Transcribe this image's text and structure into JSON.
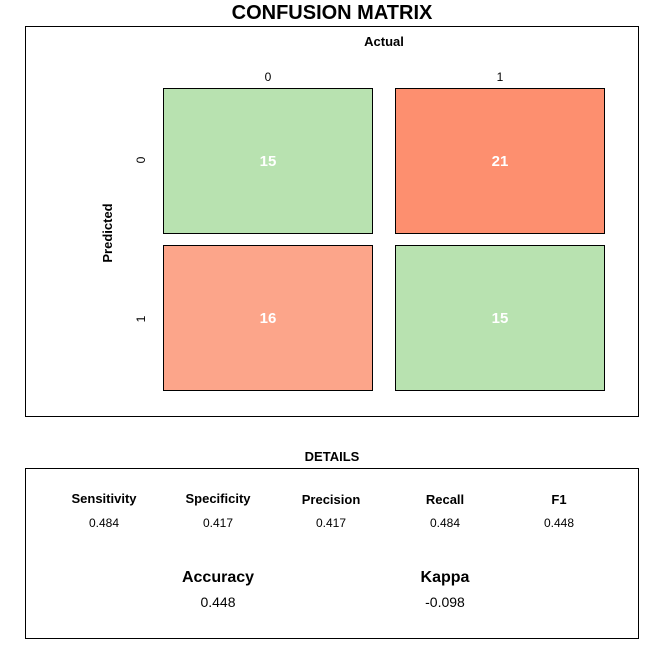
{
  "title": "CONFUSION MATRIX",
  "chart_data": {
    "type": "heatmap",
    "title": "CONFUSION MATRIX",
    "xlabel": "Actual",
    "ylabel": "Predicted",
    "x_categories": [
      "0",
      "1"
    ],
    "y_categories": [
      "0",
      "1"
    ],
    "values": [
      [
        15,
        21
      ],
      [
        16,
        15
      ]
    ],
    "colors": [
      [
        "#b8e2b0",
        "#fd8f6f"
      ],
      [
        "#fca58a",
        "#b8e2b0"
      ]
    ]
  },
  "details": {
    "title": "DETAILS",
    "metrics": [
      {
        "label": "Sensitivity",
        "value": "0.484"
      },
      {
        "label": "Specificity",
        "value": "0.417"
      },
      {
        "label": "Precision",
        "value": "0.417"
      },
      {
        "label": "Recall",
        "value": "0.484"
      },
      {
        "label": "F1",
        "value": "0.448"
      }
    ],
    "summary": [
      {
        "label": "Accuracy",
        "value": "0.448"
      },
      {
        "label": "Kappa",
        "value": "-0.098"
      }
    ]
  }
}
